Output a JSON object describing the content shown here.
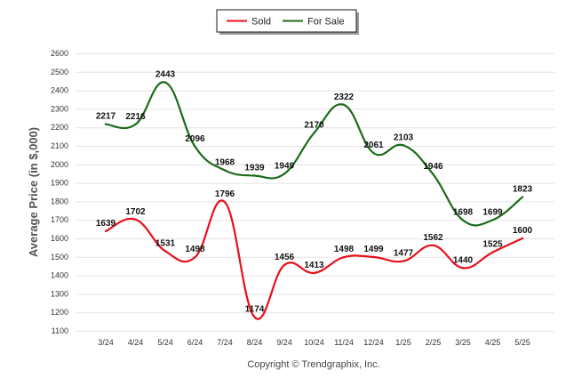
{
  "chart_data": {
    "type": "line",
    "categories": [
      "3/24",
      "4/24",
      "5/24",
      "6/24",
      "7/24",
      "8/24",
      "9/24",
      "10/24",
      "11/24",
      "12/24",
      "1/25",
      "2/25",
      "3/25",
      "4/25",
      "5/25"
    ],
    "series": [
      {
        "name": "Sold",
        "color": "#e8101b",
        "values": [
          1639,
          1702,
          1531,
          1498,
          1796,
          1174,
          1456,
          1413,
          1498,
          1499,
          1477,
          1562,
          1440,
          1525,
          1600
        ]
      },
      {
        "name": "For Sale",
        "color": "#1b6b1b",
        "values": [
          2217,
          2216,
          2443,
          2096,
          1968,
          1939,
          1949,
          2170,
          2322,
          2061,
          2103,
          1946,
          1698,
          1699,
          1823
        ]
      }
    ],
    "ylabel": "Average Price (in $,000)",
    "xlabel": "",
    "ylim": [
      1100,
      2600
    ],
    "yticks": [
      1100,
      1200,
      1300,
      1400,
      1500,
      1600,
      1700,
      1800,
      1900,
      2000,
      2100,
      2200,
      2300,
      2400,
      2500,
      2600
    ],
    "grid": true,
    "legend_position": "top-center",
    "smooth": true
  },
  "footer": {
    "copyright": "Copyright © Trendgraphix, Inc."
  }
}
